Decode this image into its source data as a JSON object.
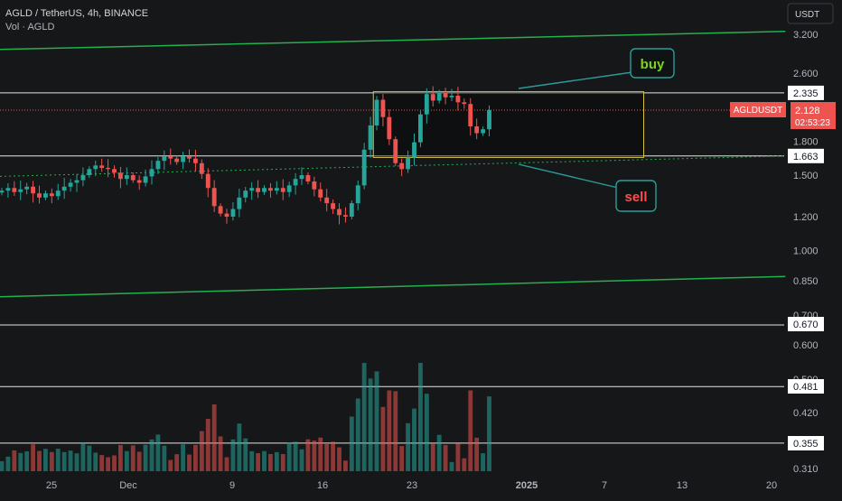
{
  "header": {
    "symbol_line": "AGLD / TetherUS, 4h, BINANCE",
    "volume_line": "Vol · AGLD"
  },
  "currency_button": "USDT",
  "colors": {
    "background": "#161719",
    "up": "#26a69a",
    "down": "#ef5350",
    "trendline": "#22b14c",
    "level_line": "#e6e6e6",
    "box_border": "#d6c23a",
    "callout_border": "#2a9d9a",
    "buy_text": "#7ed321",
    "sell_text": "#ff4d4d",
    "axis_text": "#b2b5be"
  },
  "price_axis": {
    "ticks": [
      "3.200",
      "2.600",
      "1.800",
      "1.500",
      "1.200",
      "1.000",
      "0.850",
      "0.700",
      "0.600",
      "0.500",
      "0.420",
      "0.310"
    ],
    "level_labels": [
      "2.335",
      "1.663",
      "0.670",
      "0.481",
      "0.355"
    ],
    "price_tag": {
      "symbol": "AGLDUSDT",
      "price": "2.128",
      "countdown": "02:53:23"
    }
  },
  "time_axis": {
    "labels": [
      "25",
      "Dec",
      "9",
      "16",
      "23",
      "2025",
      "7",
      "13",
      "20"
    ]
  },
  "annotations": {
    "buy_label": "buy",
    "sell_label": "sell"
  },
  "chart_data": {
    "type": "candlestick",
    "symbol": "AGLD / TetherUS",
    "interval": "4h",
    "exchange": "BINANCE",
    "scale": "log",
    "y_range": [
      0.3,
      3.4
    ],
    "x_range": [
      "2024-11-21",
      "2025-01-21"
    ],
    "horizontal_levels": [
      2.335,
      1.663,
      0.67,
      0.481,
      0.355
    ],
    "box": {
      "x_start": "2024-12-20",
      "x_end": "2025-01-10",
      "y_low": 1.65,
      "y_high": 2.35
    },
    "trendlines": [
      {
        "from": [
          "2024-11-21",
          2.95
        ],
        "to": [
          "2025-01-21",
          3.25
        ]
      },
      {
        "from": [
          "2024-11-21",
          0.78
        ],
        "to": [
          "2025-01-21",
          0.87
        ]
      }
    ],
    "last_price": 2.128,
    "closes": [
      1.38,
      1.4,
      1.37,
      1.39,
      1.41,
      1.36,
      1.33,
      1.36,
      1.34,
      1.38,
      1.41,
      1.44,
      1.46,
      1.5,
      1.55,
      1.58,
      1.56,
      1.55,
      1.52,
      1.47,
      1.5,
      1.46,
      1.44,
      1.49,
      1.55,
      1.62,
      1.66,
      1.64,
      1.61,
      1.66,
      1.64,
      1.6,
      1.51,
      1.4,
      1.27,
      1.22,
      1.2,
      1.25,
      1.33,
      1.38,
      1.4,
      1.37,
      1.4,
      1.38,
      1.4,
      1.37,
      1.42,
      1.47,
      1.5,
      1.45,
      1.39,
      1.33,
      1.29,
      1.25,
      1.21,
      1.2,
      1.29,
      1.42,
      1.72,
      1.96,
      2.25,
      2.05,
      1.82,
      1.6,
      1.55,
      1.65,
      1.79,
      2.08,
      2.32,
      2.24,
      2.34,
      2.28,
      2.3,
      2.22,
      2.2,
      1.95,
      1.88,
      1.92,
      2.128
    ]
  }
}
